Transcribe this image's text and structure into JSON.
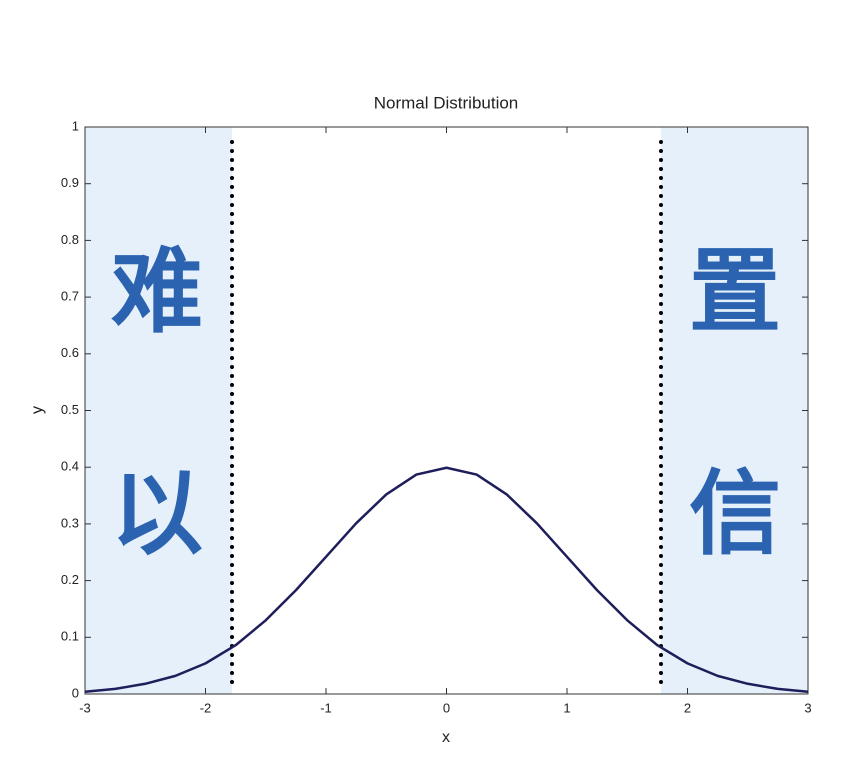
{
  "chart_data": {
    "type": "line",
    "title": "Normal Distribution",
    "x_label": "x",
    "y_label": "y",
    "x": [
      -3,
      -2.75,
      -2.5,
      -2.25,
      -2,
      -1.75,
      -1.5,
      -1.25,
      -1,
      -0.75,
      -0.5,
      -0.25,
      0,
      0.25,
      0.5,
      0.75,
      1,
      1.25,
      1.5,
      1.75,
      2,
      2.25,
      2.5,
      2.75,
      3
    ],
    "values": [
      0.004,
      0.009,
      0.018,
      0.032,
      0.054,
      0.086,
      0.13,
      0.183,
      0.242,
      0.301,
      0.352,
      0.387,
      0.399,
      0.387,
      0.352,
      0.301,
      0.242,
      0.183,
      0.13,
      0.086,
      0.054,
      0.032,
      0.018,
      0.009,
      0.004
    ],
    "color": "#1e1e5a",
    "vlines": [
      -1.78,
      1.78
    ],
    "shade_color": "#e6f0fa",
    "annotations": [
      "难",
      "以",
      "置",
      "信"
    ],
    "annotation_color": "#2b63b1",
    "xlim": [
      -3,
      3
    ],
    "xticks": [
      -3,
      -2,
      -1,
      0,
      1,
      2,
      3
    ],
    "ylim": [
      0,
      1
    ],
    "yticks": [
      0,
      0.1,
      0.2,
      0.3,
      0.4,
      0.5,
      0.6,
      0.7,
      0.8,
      0.9,
      1
    ]
  }
}
